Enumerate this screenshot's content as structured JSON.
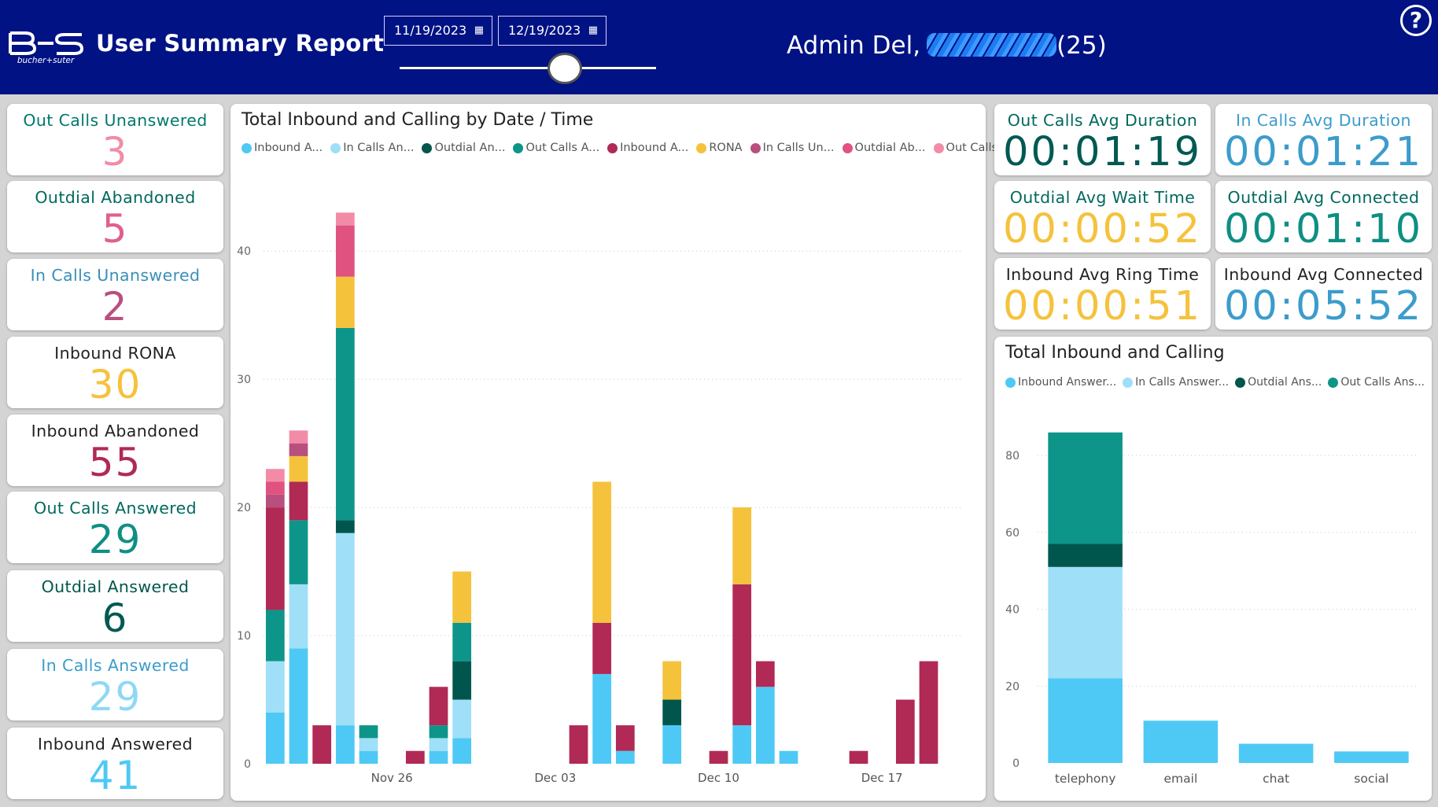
{
  "header": {
    "logo_text": "bucher+suter",
    "title": "User Summary Report",
    "start_date": "11/19/2023",
    "end_date": "12/19/2023",
    "user_prefix": "Admin Del,",
    "user_suffix": "(25)",
    "help_glyph": "?"
  },
  "kpis": [
    {
      "label": "Out Calls Unanswered",
      "value": "3",
      "label_color": "#00796b",
      "value_color": "#f28ca6"
    },
    {
      "label": "Outdial Abandoned",
      "value": "5",
      "label_color": "#00695c",
      "value_color": "#e05f8f"
    },
    {
      "label": "In Calls Unanswered",
      "value": "2",
      "label_color": "#3b8fb8",
      "value_color": "#b94f7f"
    },
    {
      "label": "Inbound RONA",
      "value": "30",
      "label_color": "#222222",
      "value_color": "#f5c23c"
    },
    {
      "label": "Inbound Abandoned",
      "value": "55",
      "label_color": "#222222",
      "value_color": "#b02a55"
    },
    {
      "label": "Out Calls Answered",
      "value": "29",
      "label_color": "#00695c",
      "value_color": "#0e8f84"
    },
    {
      "label": "Outdial Answered",
      "value": "6",
      "label_color": "#00564d",
      "value_color": "#005a52"
    },
    {
      "label": "In Calls Answered",
      "value": "29",
      "label_color": "#3b9ccc",
      "value_color": "#8fd8f5"
    },
    {
      "label": "Inbound Answered",
      "value": "41",
      "label_color": "#222222",
      "value_color": "#4ec9f5"
    }
  ],
  "time_kpis": [
    {
      "label": "Out Calls Avg Duration",
      "value": "00:01:19",
      "label_color": "#00695c",
      "value_color": "#005a52"
    },
    {
      "label": "In Calls Avg Duration",
      "value": "00:01:21",
      "label_color": "#3b9ccc",
      "value_color": "#3b9ccc"
    },
    {
      "label": "Outdial Avg Wait Time",
      "value": "00:00:52",
      "label_color": "#00695c",
      "value_color": "#f5c23c"
    },
    {
      "label": "Outdial Avg Connected",
      "value": "00:01:10",
      "label_color": "#00695c",
      "value_color": "#0e8f84"
    },
    {
      "label": "Inbound Avg Ring Time",
      "value": "00:00:51",
      "label_color": "#222222",
      "value_color": "#f5c23c"
    },
    {
      "label": "Inbound Avg Connected",
      "value": "00:05:52",
      "label_color": "#222222",
      "value_color": "#3b9ccc"
    }
  ],
  "colors": {
    "inbound_answered": "#4ec9f5",
    "in_calls_answered": "#9fdff7",
    "outdial_answered": "#00564d",
    "out_calls_answered": "#0e958a",
    "inbound_abandoned": "#b02a55",
    "rona": "#f5c23c",
    "in_calls_unanswered": "#b94f7f",
    "outdial_abandoned": "#e0527f",
    "out_calls_unanswered": "#f28ca6"
  },
  "chart_data": [
    {
      "type": "bar",
      "stacked": true,
      "title": "Total Inbound and Calling by Date / Time",
      "legend": [
        "Inbound A...",
        "In Calls An...",
        "Outdial An...",
        "Out Calls A...",
        "Inbound A...",
        "RONA",
        "In Calls Un...",
        "Outdial Ab...",
        "Out Calls ..."
      ],
      "x_tick_labels": [
        "Nov 26",
        "Dec 03",
        "Dec 10",
        "Dec 17"
      ],
      "x_tick_positions": [
        6,
        13,
        20,
        27
      ],
      "y_ticks": [
        0,
        10,
        20,
        30,
        40
      ],
      "ylim": [
        0,
        44
      ],
      "x_index_range": [
        0.5,
        30.5
      ],
      "series": [
        {
          "name": "Inbound Answered",
          "color_key": "inbound_answered",
          "points": [
            [
              1,
              4
            ],
            [
              2,
              9
            ],
            [
              4,
              3
            ],
            [
              5,
              1
            ],
            [
              8,
              1
            ],
            [
              9,
              2
            ],
            [
              15,
              7
            ],
            [
              16,
              1
            ],
            [
              18,
              3
            ],
            [
              21,
              3
            ],
            [
              22,
              6
            ],
            [
              23,
              1
            ]
          ]
        },
        {
          "name": "In Calls Answered",
          "color_key": "in_calls_answered",
          "points": [
            [
              1,
              4
            ],
            [
              2,
              5
            ],
            [
              4,
              15
            ],
            [
              5,
              1
            ],
            [
              8,
              1
            ],
            [
              9,
              3
            ]
          ]
        },
        {
          "name": "Outdial Answered",
          "color_key": "outdial_answered",
          "points": [
            [
              4,
              1
            ],
            [
              9,
              3
            ],
            [
              18,
              2
            ]
          ]
        },
        {
          "name": "Out Calls Answered",
          "color_key": "out_calls_answered",
          "points": [
            [
              1,
              4
            ],
            [
              2,
              5
            ],
            [
              4,
              15
            ],
            [
              5,
              1
            ],
            [
              8,
              1
            ],
            [
              9,
              3
            ]
          ]
        },
        {
          "name": "Inbound Abandoned",
          "color_key": "inbound_abandoned",
          "points": [
            [
              1,
              8
            ],
            [
              2,
              3
            ],
            [
              3,
              3
            ],
            [
              7,
              1
            ],
            [
              8,
              3
            ],
            [
              14,
              3
            ],
            [
              15,
              4
            ],
            [
              16,
              2
            ],
            [
              20,
              1
            ],
            [
              21,
              11
            ],
            [
              22,
              2
            ],
            [
              26,
              1
            ],
            [
              28,
              5
            ],
            [
              29,
              8
            ]
          ]
        },
        {
          "name": "RONA",
          "color_key": "rona",
          "points": [
            [
              2,
              2
            ],
            [
              4,
              4
            ],
            [
              9,
              4
            ],
            [
              15,
              11
            ],
            [
              18,
              3
            ],
            [
              21,
              6
            ]
          ]
        },
        {
          "name": "In Calls Unanswered",
          "color_key": "in_calls_unanswered",
          "points": [
            [
              1,
              1
            ],
            [
              2,
              1
            ]
          ]
        },
        {
          "name": "Outdial Abandoned",
          "color_key": "outdial_abandoned",
          "points": [
            [
              1,
              1
            ],
            [
              4,
              4
            ]
          ]
        },
        {
          "name": "Out Calls Unanswered",
          "color_key": "out_calls_unanswered",
          "points": [
            [
              1,
              1
            ],
            [
              2,
              1
            ],
            [
              4,
              1
            ]
          ]
        }
      ]
    },
    {
      "type": "bar",
      "stacked": true,
      "title": "Total Inbound and Calling",
      "legend": [
        "Inbound Answer...",
        "In Calls Answer...",
        "Outdial Ans...",
        "Out Calls Ans..."
      ],
      "categories": [
        "telephony",
        "email",
        "chat",
        "social"
      ],
      "y_ticks": [
        0,
        20,
        40,
        60,
        80
      ],
      "ylim": [
        0,
        88
      ],
      "series": [
        {
          "name": "Inbound Answered",
          "color_key": "inbound_answered",
          "values": [
            22,
            11,
            5,
            3
          ]
        },
        {
          "name": "In Calls Answered",
          "color_key": "in_calls_answered",
          "values": [
            29,
            0,
            0,
            0
          ]
        },
        {
          "name": "Outdial Answered",
          "color_key": "outdial_answered",
          "values": [
            6,
            0,
            0,
            0
          ]
        },
        {
          "name": "Out Calls Answered",
          "color_key": "out_calls_answered",
          "values": [
            29,
            0,
            0,
            0
          ]
        }
      ]
    }
  ]
}
